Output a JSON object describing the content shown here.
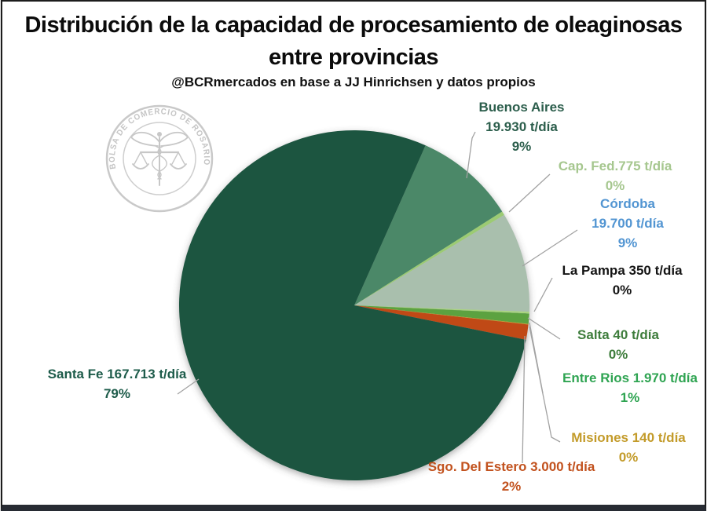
{
  "chart_data": {
    "type": "pie",
    "title": "Distribución de la capacidad de procesamiento de oleaginosas entre provincias",
    "subtitle": "@BCRmercados en base a JJ Hinrichsen y datos propios",
    "unit": "t/día",
    "start_angle_deg": 24,
    "direction": "clockwise",
    "legend": "callout-labels-with-leader-lines",
    "slices": [
      {
        "name": "Buenos Aires",
        "value": 19930,
        "pct": 9,
        "color": "#4b8867",
        "label_color": "#2c5e4c",
        "label_lines": [
          "Buenos Aires",
          "19.930 t/día",
          "9%"
        ]
      },
      {
        "name": "Cap. Fed.",
        "value": 775,
        "pct": 0,
        "color": "#9ccb73",
        "label_color": "#a6c78f",
        "label_lines": [
          "Cap. Fed.775 t/día",
          "0%"
        ]
      },
      {
        "name": "Córdoba",
        "value": 19700,
        "pct": 9,
        "color": "#a9bfad",
        "label_color": "#5295d2",
        "label_lines": [
          "Córdoba",
          "19.700 t/día",
          "9%"
        ]
      },
      {
        "name": "La Pampa",
        "value": 350,
        "pct": 0,
        "color": "#a9d47f",
        "label_color": "#141414",
        "label_lines": [
          "La Pampa 350 t/día",
          "0%"
        ]
      },
      {
        "name": "Salta",
        "value": 40,
        "pct": 0,
        "color": "#3e7d3e",
        "label_color": "#3e7d3c",
        "label_lines": [
          "Salta 40 t/día",
          "0%"
        ]
      },
      {
        "name": "Entre Rios",
        "value": 1970,
        "pct": 1,
        "color": "#5ca23f",
        "label_color": "#2fa452",
        "label_lines": [
          "Entre Rios 1.970 t/día",
          "1%"
        ]
      },
      {
        "name": "Misiones",
        "value": 140,
        "pct": 0,
        "color": "#c29a29",
        "label_color": "#c39b2a",
        "label_lines": [
          "Misiones  140 t/día",
          "0%"
        ]
      },
      {
        "name": "Sgo. Del Estero",
        "value": 3000,
        "pct": 2,
        "color": "#c04a15",
        "label_color": "#c2521e",
        "label_lines": [
          "Sgo. Del Estero 3.000 t/día",
          "2%"
        ]
      },
      {
        "name": "Santa Fe",
        "value": 167713,
        "pct": 79,
        "color": "#1d5540",
        "label_color": "#1e5c4b",
        "label_lines": [
          "Santa Fe 167.713 t/día",
          "79%"
        ]
      }
    ]
  },
  "logo": {
    "ring_text": "BOLSA DE COMERCIO DE ROSARIO"
  }
}
